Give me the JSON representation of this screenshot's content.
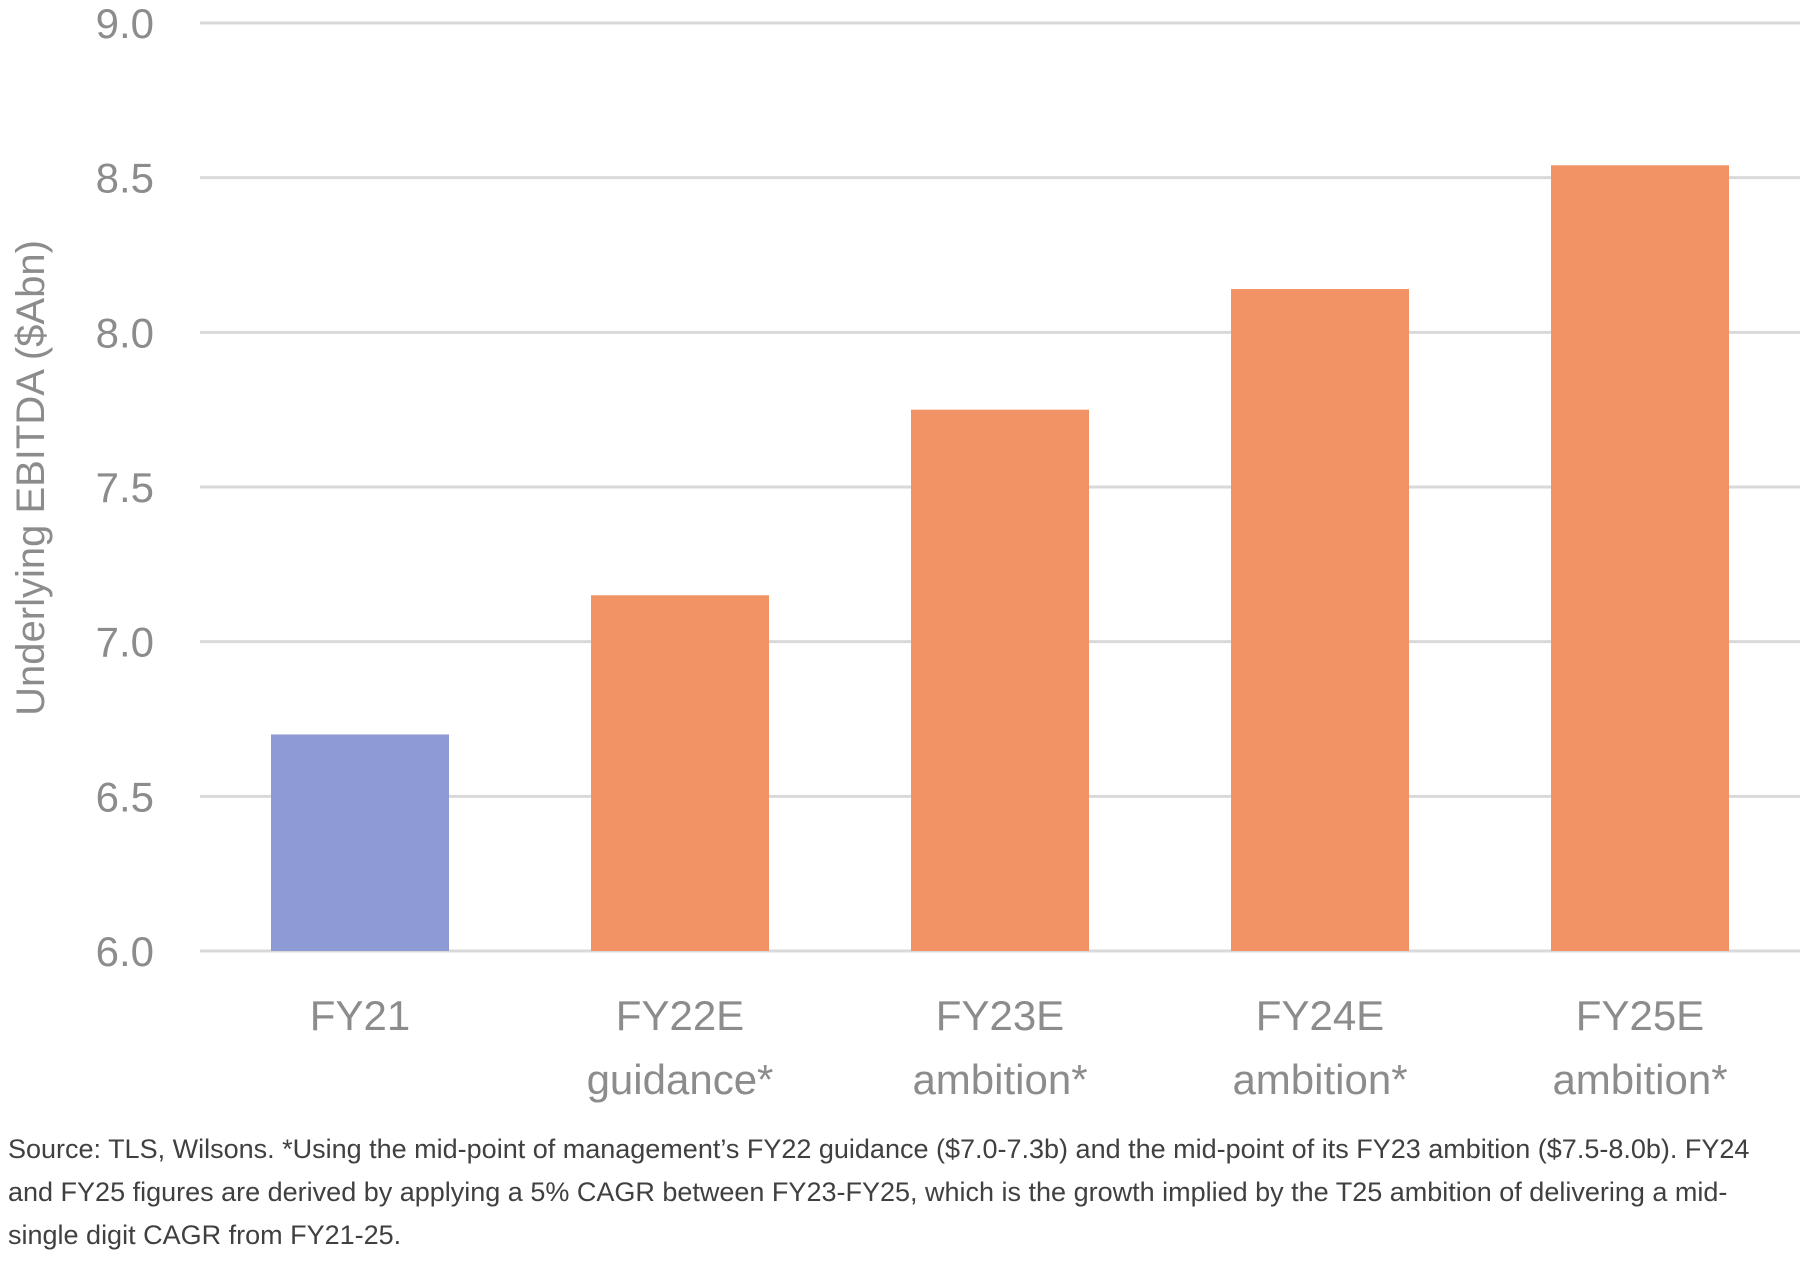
{
  "chart_data": {
    "type": "bar",
    "categories": [
      [
        "FY21"
      ],
      [
        "FY22E",
        "guidance*"
      ],
      [
        "FY23E",
        "ambition*"
      ],
      [
        "FY24E",
        "ambition*"
      ],
      [
        "FY25E",
        "ambition*"
      ]
    ],
    "values": [
      6.7,
      7.15,
      7.75,
      8.14,
      8.54
    ],
    "bar_colors": [
      "#8e9ad3",
      "#f29365",
      "#f29365",
      "#f29365",
      "#f29365"
    ],
    "ylabel": "Underlying EBITDA ($Abn)",
    "ylim": [
      6.0,
      9.0
    ],
    "yticks": [
      "6.0",
      "6.5",
      "7.0",
      "7.5",
      "8.0",
      "8.5",
      "9.0"
    ],
    "grid": true
  },
  "footnote": "Source: TLS, Wilsons. *Using the mid-point of management’s FY22 guidance ($7.0-7.3b) and the mid-point of its FY23 ambition ($7.5-8.0b). FY24 and FY25 figures are derived by applying a 5% CAGR between FY23-FY25, which is the growth implied by the T25 ambition of delivering a mid-single digit CAGR from FY21-25."
}
